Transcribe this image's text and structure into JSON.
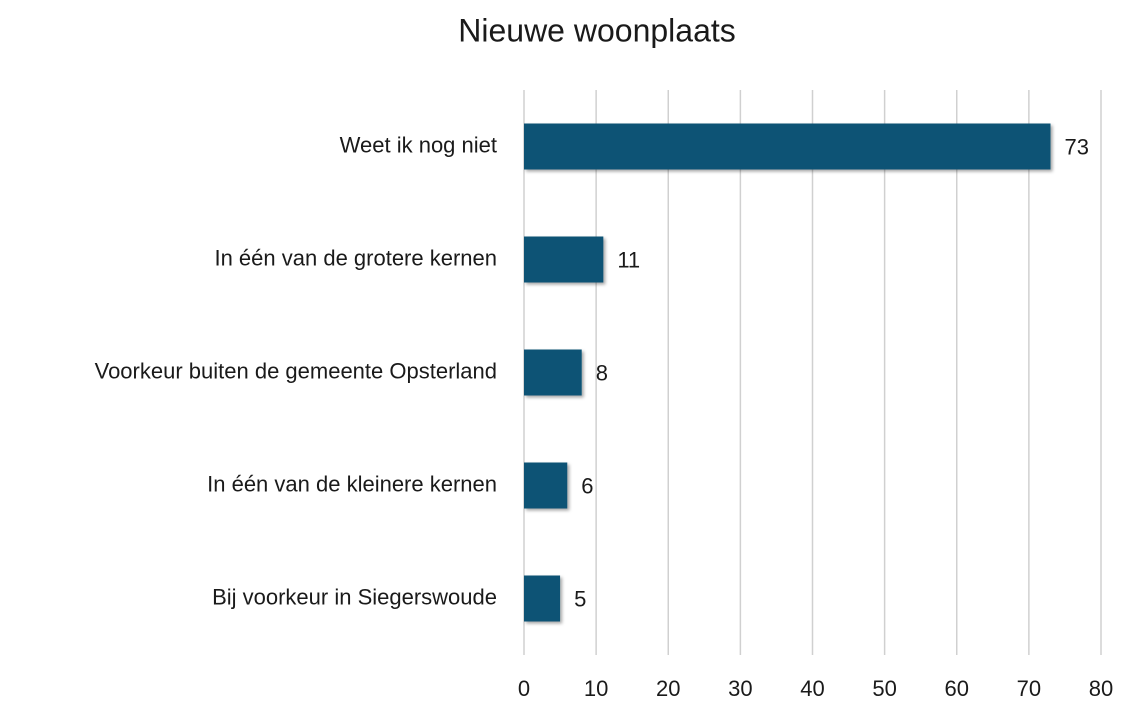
{
  "chart_data": {
    "type": "bar",
    "orientation": "horizontal",
    "title": "Nieuwe woonplaats",
    "categories": [
      "Weet ik nog niet",
      "In één van de grotere kernen",
      "Voorkeur buiten de gemeente Opsterland",
      "In één van de kleinere kernen",
      "Bij voorkeur in Siegerswoude"
    ],
    "values": [
      73,
      11,
      8,
      6,
      5
    ],
    "color": "#0f5374",
    "xlim": [
      0,
      80
    ],
    "xticks": [
      0,
      10,
      20,
      30,
      40,
      50,
      60,
      70,
      80
    ],
    "grid": true
  }
}
